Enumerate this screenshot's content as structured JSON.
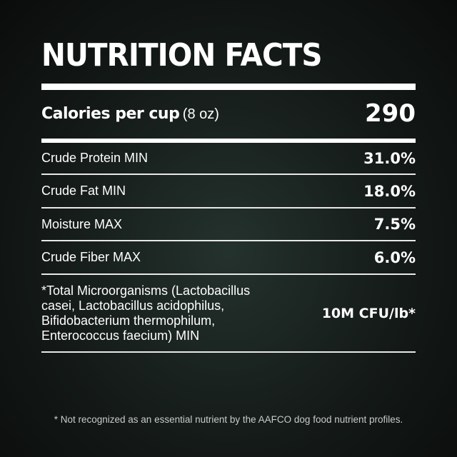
{
  "title": "NUTRITION FACTS",
  "calories": {
    "label": "Calories per cup",
    "unit": "(8 oz)",
    "value": "290"
  },
  "rows": [
    {
      "label": "Crude Protein MIN",
      "value": "31.0%"
    },
    {
      "label": "Crude Fat MIN",
      "value": "18.0%"
    },
    {
      "label": "Moisture MAX",
      "value": "7.5%"
    },
    {
      "label": "Crude Fiber MAX",
      "value": "6.0%"
    }
  ],
  "micro": {
    "lines": [
      "*Total Microorganisms (Lactobacillus",
      "casei, Lactobacillus acidophilus,",
      "Bifidobacterium thermophilum,",
      "Enterococcus faecium) MIN"
    ],
    "value": "10M CFU/lb*"
  },
  "footnote": "* Not recognized as an essential nutrient by the AAFCO dog food nutrient profiles."
}
